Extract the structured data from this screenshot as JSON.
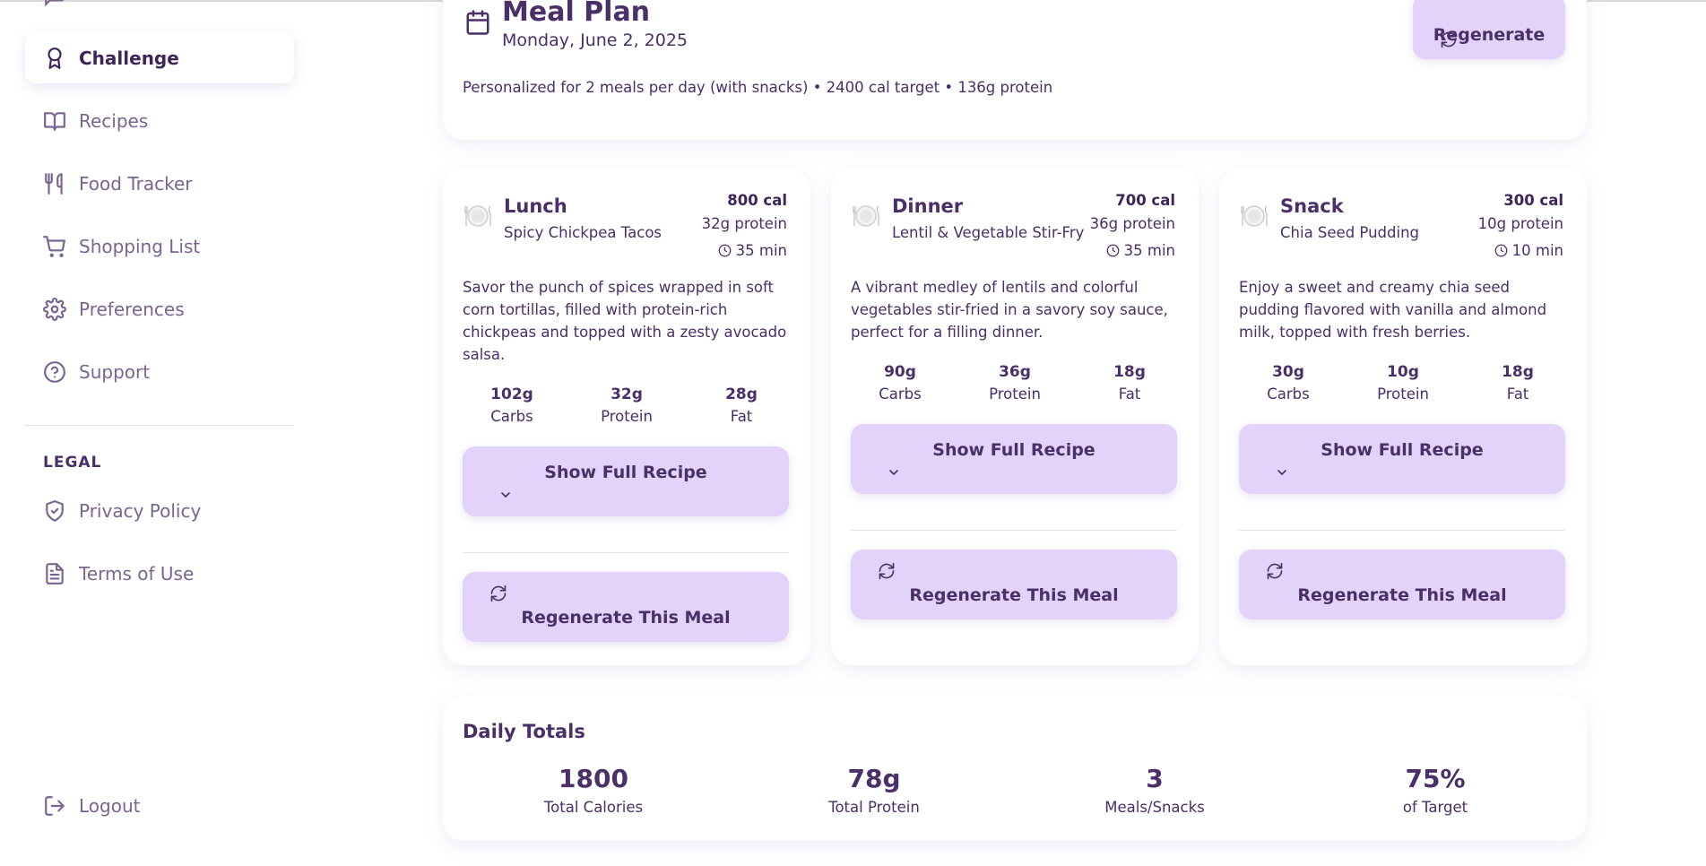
{
  "sidebar": {
    "items": [
      {
        "label": "Challenge",
        "icon": "award-icon"
      },
      {
        "label": "Recipes",
        "icon": "book-icon"
      },
      {
        "label": "Food Tracker",
        "icon": "utensils-icon"
      },
      {
        "label": "Shopping List",
        "icon": "cart-icon"
      },
      {
        "label": "Preferences",
        "icon": "gear-icon"
      },
      {
        "label": "Support",
        "icon": "help-icon"
      }
    ],
    "legal_heading": "LEGAL",
    "legal_items": [
      {
        "label": "Privacy Policy",
        "icon": "shield-check-icon"
      },
      {
        "label": "Terms of Use",
        "icon": "document-icon"
      }
    ],
    "logout": "Logout"
  },
  "plan": {
    "title": "Meal Plan",
    "date": "Monday, June 2, 2025",
    "description": "Personalized for 2 meals per day (with snacks) • 2400 cal target • 136g protein",
    "regenerate_label": "Regenerate"
  },
  "meals": [
    {
      "type": "Lunch",
      "name": "Spicy Chickpea Tacos",
      "calories": "800 cal",
      "protein": "32g protein",
      "time": "35 min",
      "description": "Savor the punch of spices wrapped in soft corn tortillas, filled with protein-rich chickpeas and topped with a zesty avocado salsa.",
      "macros": [
        {
          "value": "102g",
          "label": "Carbs"
        },
        {
          "value": "32g",
          "label": "Protein"
        },
        {
          "value": "28g",
          "label": "Fat"
        }
      ],
      "recipe_label": "Show Full Recipe",
      "regen_label": "Regenerate This Meal"
    },
    {
      "type": "Dinner",
      "name": "Lentil & Vegetable Stir-Fry",
      "calories": "700 cal",
      "protein": "36g protein",
      "time": "35 min",
      "description": "A vibrant medley of lentils and colorful vegetables stir-fried in a savory soy sauce, perfect for a filling dinner.",
      "macros": [
        {
          "value": "90g",
          "label": "Carbs"
        },
        {
          "value": "36g",
          "label": "Protein"
        },
        {
          "value": "18g",
          "label": "Fat"
        }
      ],
      "recipe_label": "Show Full Recipe",
      "regen_label": "Regenerate This Meal"
    },
    {
      "type": "Snack",
      "name": "Chia Seed Pudding",
      "calories": "300 cal",
      "protein": "10g protein",
      "time": "10 min",
      "description": "Enjoy a sweet and creamy chia seed pudding flavored with vanilla and almond milk, topped with fresh berries.",
      "macros": [
        {
          "value": "30g",
          "label": "Carbs"
        },
        {
          "value": "10g",
          "label": "Protein"
        },
        {
          "value": "18g",
          "label": "Fat"
        }
      ],
      "recipe_label": "Show Full Recipe",
      "regen_label": "Regenerate This Meal"
    }
  ],
  "totals": {
    "title": "Daily Totals",
    "items": [
      {
        "value": "1800",
        "label": "Total Calories"
      },
      {
        "value": "78g",
        "label": "Total Protein"
      },
      {
        "value": "3",
        "label": "Meals/Snacks"
      },
      {
        "value": "75%",
        "label": "of Target"
      }
    ]
  },
  "colors": {
    "accent": "#e3d3fb",
    "text": "#4a2f68",
    "muted": "#7a6490"
  }
}
